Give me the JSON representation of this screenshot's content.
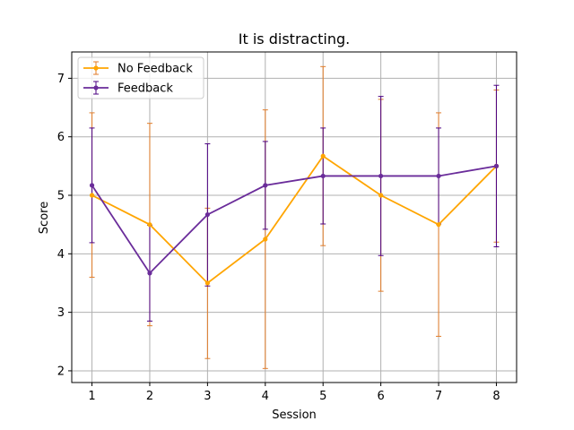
{
  "chart_data": {
    "type": "line",
    "title": "It is distracting.",
    "xlabel": "Session",
    "ylabel": "Score",
    "x": [
      1,
      2,
      3,
      4,
      5,
      6,
      7,
      8
    ],
    "xlim": [
      0.65,
      8.35
    ],
    "ylim": [
      1.8,
      7.45
    ],
    "xticks": [
      1,
      2,
      3,
      4,
      5,
      6,
      7,
      8
    ],
    "yticks": [
      2,
      3,
      4,
      5,
      6,
      7
    ],
    "grid": true,
    "legend_position": "top-left",
    "series": [
      {
        "name": "No Feedback",
        "color": "#ffa500",
        "error_color": "#e07b28",
        "values": [
          5.0,
          4.5,
          3.5,
          4.25,
          5.67,
          5.0,
          4.5,
          5.5
        ],
        "err_low": [
          3.6,
          2.77,
          2.21,
          2.04,
          4.14,
          3.36,
          2.59,
          4.2
        ],
        "err_high": [
          6.41,
          6.23,
          4.78,
          6.46,
          7.2,
          6.64,
          6.41,
          6.8
        ]
      },
      {
        "name": "Feedback",
        "color": "#6a2c9a",
        "error_color": "#4b0082",
        "values": [
          5.17,
          3.67,
          4.67,
          5.17,
          5.33,
          5.33,
          5.33,
          5.5
        ],
        "err_low": [
          4.19,
          2.85,
          3.45,
          4.42,
          4.51,
          3.97,
          4.51,
          4.12
        ],
        "err_high": [
          6.15,
          4.49,
          5.88,
          5.92,
          6.15,
          6.69,
          6.15,
          6.88
        ]
      }
    ]
  }
}
